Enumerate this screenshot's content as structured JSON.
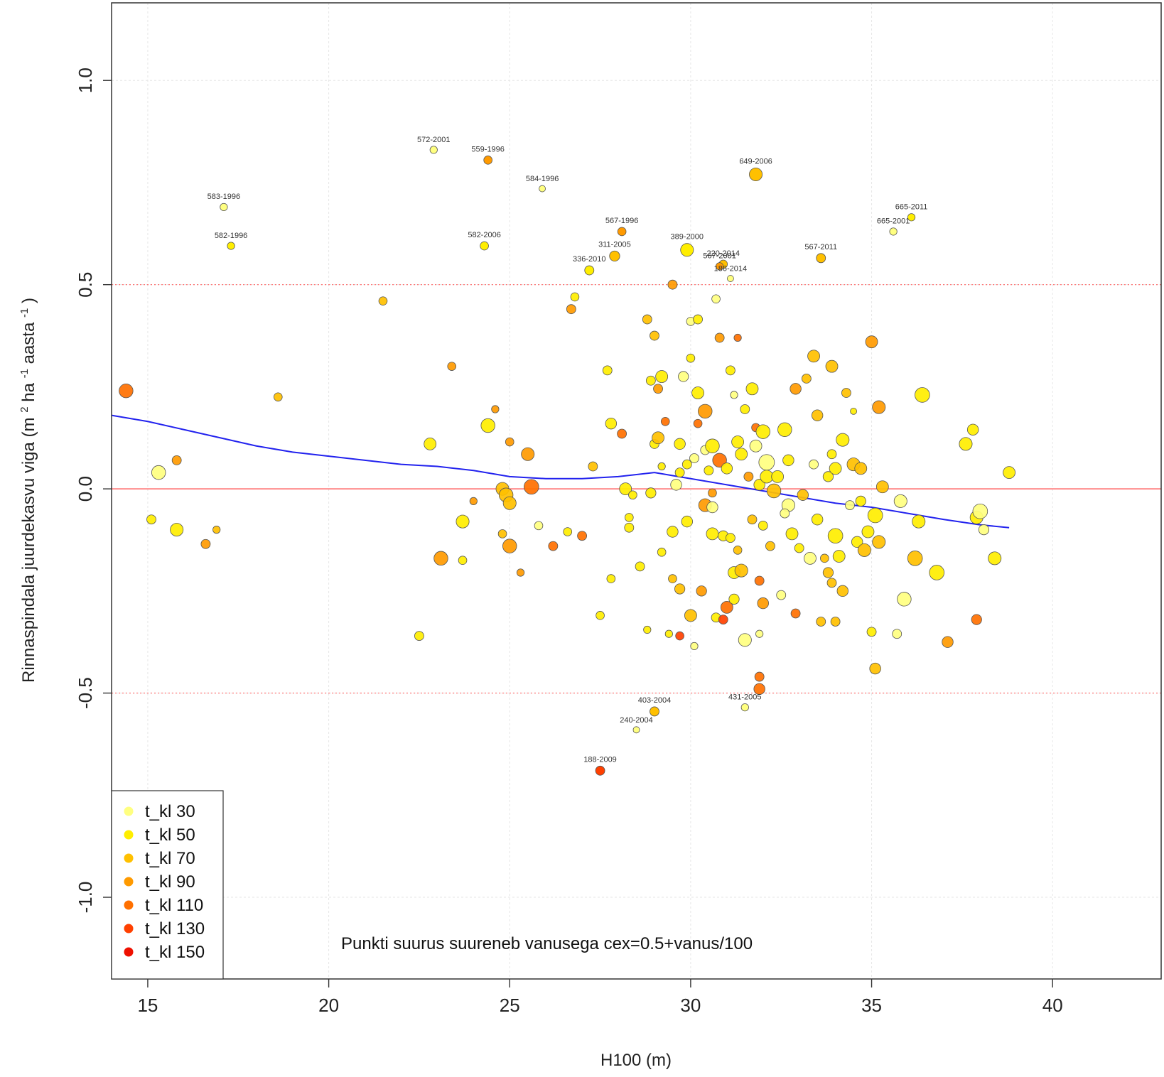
{
  "chart_data": {
    "type": "scatter",
    "xlabel": "H100 (m)",
    "ylabel_main": "Rinnaspindala juurdekasvu viga",
    "ylabel_unit": {
      "open": "(m",
      "sup1": "2",
      "mid1": "ha",
      "sup2": "-1",
      "mid2": "aasta",
      "sup3": "-1",
      "close": ")"
    },
    "xlim": [
      14,
      43
    ],
    "ylim": [
      -1.2,
      1.19
    ],
    "x_ticks": [
      15,
      20,
      25,
      30,
      35,
      40
    ],
    "y_ticks": [
      -1.0,
      -0.5,
      0.0,
      0.5,
      1.0
    ],
    "y_tick_labels": [
      "-1.0",
      "-0.5",
      "0.0",
      "0.5",
      "1.0"
    ],
    "hlines": [
      {
        "y": 0.0,
        "color": "#ff6666",
        "style": "solid"
      },
      {
        "y": 0.5,
        "color": "#ff6666",
        "style": "dotted"
      },
      {
        "y": -0.5,
        "color": "#ff6666",
        "style": "dotted"
      }
    ],
    "annotation": "Punkti suurus suureneb vanusega cex=0.5+vanus/100",
    "legend": {
      "position": "bottom-left",
      "entries": [
        {
          "label": "t_kl 30",
          "color": "#ffff80"
        },
        {
          "label": "t_kl 50",
          "color": "#ffee00"
        },
        {
          "label": "t_kl 70",
          "color": "#ffc000"
        },
        {
          "label": "t_kl 90",
          "color": "#ff9a00"
        },
        {
          "label": "t_kl 110",
          "color": "#ff7000"
        },
        {
          "label": "t_kl 130",
          "color": "#ff4000"
        },
        {
          "label": "t_kl 150",
          "color": "#ee1000"
        }
      ]
    },
    "smooth_line": {
      "color": "#2222ee",
      "x": [
        14,
        15,
        16,
        17,
        18,
        19,
        20,
        21,
        22,
        23,
        24,
        25,
        26,
        27,
        28,
        29,
        30,
        31,
        32,
        33,
        34,
        35,
        36,
        37,
        38,
        38.8
      ],
      "y": [
        0.18,
        0.165,
        0.145,
        0.125,
        0.105,
        0.09,
        0.08,
        0.07,
        0.06,
        0.055,
        0.045,
        0.03,
        0.025,
        0.025,
        0.03,
        0.04,
        0.025,
        0.01,
        -0.005,
        -0.02,
        -0.035,
        -0.045,
        -0.06,
        -0.075,
        -0.088,
        -0.095
      ]
    },
    "labeled_points": [
      {
        "label": "572-2001",
        "x": 22.9,
        "y": 0.83,
        "cls": 30,
        "size": 0.8
      },
      {
        "label": "559-1996",
        "x": 24.4,
        "y": 0.805,
        "cls": 90,
        "size": 0.9
      },
      {
        "label": "583-1996",
        "x": 17.1,
        "y": 0.69,
        "cls": 30,
        "size": 0.8
      },
      {
        "label": "584-1996",
        "x": 25.9,
        "y": 0.735,
        "cls": 30,
        "size": 0.7
      },
      {
        "label": "649-2006",
        "x": 31.8,
        "y": 0.77,
        "cls": 70,
        "size": 1.4
      },
      {
        "label": "665-2011",
        "x": 36.1,
        "y": 0.665,
        "cls": 50,
        "size": 0.8
      },
      {
        "label": "665-2001",
        "x": 35.6,
        "y": 0.63,
        "cls": 30,
        "size": 0.8
      },
      {
        "label": "582-1996",
        "x": 17.3,
        "y": 0.595,
        "cls": 50,
        "size": 0.8
      },
      {
        "label": "582-2006",
        "x": 24.3,
        "y": 0.595,
        "cls": 50,
        "size": 0.9
      },
      {
        "label": "567-1996",
        "x": 28.1,
        "y": 0.63,
        "cls": 90,
        "size": 0.9
      },
      {
        "label": "311-2005",
        "x": 27.9,
        "y": 0.57,
        "cls": 70,
        "size": 1.1
      },
      {
        "label": "336-2010",
        "x": 27.2,
        "y": 0.535,
        "cls": 50,
        "size": 1.0
      },
      {
        "label": "389-2000",
        "x": 29.9,
        "y": 0.585,
        "cls": 50,
        "size": 1.4
      },
      {
        "label": "220-2014",
        "x": 30.9,
        "y": 0.55,
        "cls": 70,
        "size": 0.9
      },
      {
        "label": "567-2001",
        "x": 30.8,
        "y": 0.545,
        "cls": 90,
        "size": 0.8
      },
      {
        "label": "186-2014",
        "x": 31.1,
        "y": 0.515,
        "cls": 30,
        "size": 0.7
      },
      {
        "label": "567-2011",
        "x": 33.6,
        "y": 0.565,
        "cls": 70,
        "size": 1.0
      },
      {
        "label": "403-2004",
        "x": 29.0,
        "y": -0.545,
        "cls": 70,
        "size": 1.0
      },
      {
        "label": "240-2004",
        "x": 28.5,
        "y": -0.59,
        "cls": 30,
        "size": 0.7
      },
      {
        "label": "431-2005",
        "x": 31.5,
        "y": -0.535,
        "cls": 30,
        "size": 0.8
      },
      {
        "label": "188-2009",
        "x": 27.5,
        "y": -0.69,
        "cls": 130,
        "size": 1.0
      }
    ],
    "points": [
      [
        14.4,
        0.24,
        110,
        1.5
      ],
      [
        15.1,
        -0.075,
        50,
        1.0
      ],
      [
        15.3,
        0.04,
        30,
        1.5
      ],
      [
        15.8,
        -0.1,
        50,
        1.4
      ],
      [
        15.8,
        0.07,
        90,
        1.0
      ],
      [
        16.6,
        -0.135,
        90,
        1.0
      ],
      [
        16.9,
        -0.1,
        70,
        0.8
      ],
      [
        18.6,
        0.225,
        70,
        0.9
      ],
      [
        21.5,
        0.46,
        70,
        0.9
      ],
      [
        22.5,
        -0.36,
        50,
        1.0
      ],
      [
        22.8,
        0.11,
        50,
        1.3
      ],
      [
        23.1,
        -0.17,
        90,
        1.5
      ],
      [
        23.4,
        0.3,
        90,
        0.9
      ],
      [
        23.7,
        -0.08,
        50,
        1.4
      ],
      [
        23.7,
        -0.175,
        50,
        0.9
      ],
      [
        24.0,
        -0.03,
        90,
        0.8
      ],
      [
        24.4,
        0.155,
        50,
        1.5
      ],
      [
        24.6,
        0.195,
        90,
        0.8
      ],
      [
        24.8,
        0.0,
        70,
        1.4
      ],
      [
        24.8,
        -0.11,
        70,
        0.9
      ],
      [
        25.0,
        0.115,
        90,
        0.9
      ],
      [
        24.9,
        -0.015,
        70,
        1.5
      ],
      [
        25.0,
        -0.035,
        70,
        1.4
      ],
      [
        25.0,
        -0.14,
        90,
        1.5
      ],
      [
        25.3,
        -0.205,
        90,
        0.8
      ],
      [
        25.5,
        0.085,
        90,
        1.4
      ],
      [
        25.6,
        0.005,
        110,
        1.6
      ],
      [
        25.8,
        -0.09,
        30,
        0.9
      ],
      [
        26.2,
        -0.14,
        110,
        1.0
      ],
      [
        26.6,
        -0.105,
        50,
        0.9
      ],
      [
        26.7,
        0.44,
        90,
        1.0
      ],
      [
        26.8,
        0.47,
        50,
        0.9
      ],
      [
        27.0,
        -0.115,
        110,
        1.0
      ],
      [
        27.3,
        0.055,
        70,
        1.0
      ],
      [
        27.5,
        -0.31,
        50,
        0.9
      ],
      [
        27.7,
        0.29,
        50,
        1.0
      ],
      [
        27.8,
        0.16,
        50,
        1.2
      ],
      [
        27.8,
        -0.22,
        50,
        0.9
      ],
      [
        28.1,
        0.135,
        110,
        1.0
      ],
      [
        28.2,
        0.0,
        50,
        1.3
      ],
      [
        28.3,
        -0.095,
        50,
        1.0
      ],
      [
        28.3,
        -0.07,
        50,
        0.9
      ],
      [
        28.4,
        -0.015,
        50,
        0.9
      ],
      [
        28.6,
        -0.19,
        50,
        1.0
      ],
      [
        28.8,
        -0.345,
        50,
        0.8
      ],
      [
        28.8,
        0.415,
        70,
        1.0
      ],
      [
        28.9,
        0.265,
        50,
        1.0
      ],
      [
        28.9,
        -0.01,
        50,
        1.1
      ],
      [
        29.0,
        0.11,
        50,
        1.0
      ],
      [
        29.0,
        0.375,
        70,
        1.0
      ],
      [
        29.1,
        0.125,
        70,
        1.3
      ],
      [
        29.1,
        0.245,
        90,
        1.0
      ],
      [
        29.2,
        -0.155,
        50,
        0.9
      ],
      [
        29.2,
        0.275,
        50,
        1.3
      ],
      [
        29.3,
        0.165,
        110,
        0.9
      ],
      [
        29.4,
        -0.355,
        50,
        0.8
      ],
      [
        29.5,
        -0.22,
        70,
        0.9
      ],
      [
        29.5,
        -0.105,
        50,
        1.2
      ],
      [
        29.5,
        0.5,
        90,
        1.0
      ],
      [
        29.6,
        0.01,
        30,
        1.2
      ],
      [
        29.7,
        0.04,
        50,
        1.0
      ],
      [
        29.7,
        -0.245,
        70,
        1.1
      ],
      [
        29.7,
        -0.36,
        130,
        0.9
      ],
      [
        29.7,
        0.11,
        50,
        1.2
      ],
      [
        29.8,
        0.275,
        30,
        1.1
      ],
      [
        29.9,
        -0.08,
        50,
        1.2
      ],
      [
        29.9,
        0.06,
        50,
        1.0
      ],
      [
        30.0,
        -0.31,
        70,
        1.3
      ],
      [
        30.0,
        0.41,
        30,
        0.9
      ],
      [
        30.0,
        0.32,
        50,
        0.9
      ],
      [
        30.1,
        -0.385,
        30,
        0.8
      ],
      [
        30.1,
        0.075,
        30,
        1.0
      ],
      [
        30.2,
        0.16,
        110,
        0.9
      ],
      [
        30.2,
        0.415,
        50,
        1.0
      ],
      [
        30.2,
        0.235,
        50,
        1.3
      ],
      [
        30.3,
        -0.25,
        90,
        1.1
      ],
      [
        30.4,
        0.19,
        90,
        1.5
      ],
      [
        30.4,
        -0.04,
        90,
        1.4
      ],
      [
        30.4,
        0.095,
        30,
        1.0
      ],
      [
        30.5,
        0.045,
        50,
        1.0
      ],
      [
        30.6,
        0.105,
        50,
        1.5
      ],
      [
        30.6,
        -0.11,
        50,
        1.3
      ],
      [
        30.6,
        -0.01,
        90,
        0.9
      ],
      [
        30.7,
        0.465,
        30,
        0.9
      ],
      [
        30.7,
        -0.315,
        50,
        1.0
      ],
      [
        30.8,
        0.07,
        110,
        1.5
      ],
      [
        30.8,
        0.37,
        90,
        1.0
      ],
      [
        30.9,
        -0.115,
        50,
        1.1
      ],
      [
        30.9,
        -0.32,
        130,
        1.0
      ],
      [
        31.0,
        -0.29,
        110,
        1.3
      ],
      [
        31.0,
        0.05,
        50,
        1.2
      ],
      [
        31.1,
        -0.12,
        50,
        1.0
      ],
      [
        31.1,
        0.29,
        50,
        1.0
      ],
      [
        31.2,
        0.23,
        30,
        0.8
      ],
      [
        31.2,
        -0.27,
        50,
        1.1
      ],
      [
        31.2,
        -0.205,
        50,
        1.3
      ],
      [
        31.3,
        0.115,
        50,
        1.3
      ],
      [
        31.3,
        -0.15,
        70,
        0.9
      ],
      [
        31.3,
        0.37,
        110,
        0.8
      ],
      [
        31.4,
        0.085,
        50,
        1.3
      ],
      [
        31.4,
        -0.2,
        70,
        1.4
      ],
      [
        31.5,
        -0.37,
        30,
        1.4
      ],
      [
        31.5,
        0.195,
        50,
        1.0
      ],
      [
        31.6,
        0.03,
        90,
        1.0
      ],
      [
        31.7,
        0.245,
        50,
        1.3
      ],
      [
        31.7,
        -0.075,
        70,
        1.0
      ],
      [
        31.8,
        0.15,
        110,
        0.9
      ],
      [
        31.9,
        0.01,
        50,
        1.2
      ],
      [
        31.9,
        -0.225,
        110,
        1.0
      ],
      [
        31.9,
        -0.355,
        30,
        0.8
      ],
      [
        31.9,
        -0.46,
        110,
        1.0
      ],
      [
        31.9,
        -0.49,
        110,
        1.2
      ],
      [
        32.0,
        0.14,
        50,
        1.5
      ],
      [
        32.0,
        -0.09,
        50,
        1.0
      ],
      [
        32.0,
        -0.28,
        90,
        1.2
      ],
      [
        32.1,
        0.03,
        50,
        1.4
      ],
      [
        32.1,
        0.065,
        30,
        1.7
      ],
      [
        32.2,
        -0.14,
        70,
        1.0
      ],
      [
        32.3,
        -0.005,
        70,
        1.5
      ],
      [
        32.4,
        0.03,
        50,
        1.3
      ],
      [
        32.5,
        -0.26,
        30,
        1.0
      ],
      [
        32.6,
        0.145,
        50,
        1.5
      ],
      [
        32.7,
        0.07,
        50,
        1.2
      ],
      [
        32.7,
        -0.04,
        30,
        1.4
      ],
      [
        32.8,
        -0.11,
        50,
        1.3
      ],
      [
        32.9,
        0.245,
        90,
        1.2
      ],
      [
        32.9,
        -0.305,
        110,
        1.0
      ],
      [
        33.0,
        -0.145,
        50,
        1.0
      ],
      [
        33.1,
        -0.015,
        70,
        1.2
      ],
      [
        33.2,
        0.27,
        70,
        1.0
      ],
      [
        33.3,
        -0.17,
        30,
        1.3
      ],
      [
        33.4,
        0.325,
        70,
        1.3
      ],
      [
        33.5,
        -0.075,
        50,
        1.2
      ],
      [
        33.5,
        0.18,
        70,
        1.2
      ],
      [
        33.6,
        -0.325,
        70,
        1.0
      ],
      [
        33.7,
        -0.17,
        70,
        0.9
      ],
      [
        33.8,
        0.03,
        50,
        1.1
      ],
      [
        33.8,
        -0.205,
        70,
        1.1
      ],
      [
        33.9,
        0.085,
        50,
        1.0
      ],
      [
        33.9,
        0.3,
        70,
        1.3
      ],
      [
        34.0,
        -0.115,
        50,
        1.6
      ],
      [
        34.0,
        0.05,
        50,
        1.3
      ],
      [
        34.0,
        -0.325,
        70,
        1.0
      ],
      [
        34.1,
        -0.165,
        50,
        1.3
      ],
      [
        34.2,
        -0.25,
        70,
        1.2
      ],
      [
        34.2,
        0.12,
        50,
        1.4
      ],
      [
        34.3,
        0.235,
        70,
        1.0
      ],
      [
        34.4,
        -0.04,
        30,
        1.0
      ],
      [
        34.5,
        0.06,
        70,
        1.4
      ],
      [
        34.5,
        0.19,
        50,
        0.7
      ],
      [
        34.6,
        -0.13,
        50,
        1.2
      ],
      [
        34.7,
        0.05,
        70,
        1.3
      ],
      [
        34.8,
        -0.15,
        70,
        1.4
      ],
      [
        34.9,
        -0.105,
        50,
        1.3
      ],
      [
        35.0,
        0.36,
        90,
        1.3
      ],
      [
        35.0,
        -0.35,
        50,
        1.0
      ],
      [
        35.1,
        -0.065,
        50,
        1.6
      ],
      [
        35.2,
        0.2,
        90,
        1.4
      ],
      [
        35.2,
        -0.13,
        70,
        1.4
      ],
      [
        35.3,
        0.005,
        70,
        1.3
      ],
      [
        35.7,
        -0.355,
        30,
        1.0
      ],
      [
        35.8,
        -0.03,
        30,
        1.4
      ],
      [
        35.9,
        -0.27,
        30,
        1.5
      ],
      [
        36.2,
        -0.17,
        70,
        1.6
      ],
      [
        36.3,
        -0.08,
        50,
        1.4
      ],
      [
        36.4,
        0.23,
        50,
        1.6
      ],
      [
        36.8,
        -0.205,
        50,
        1.6
      ],
      [
        37.1,
        -0.375,
        90,
        1.2
      ],
      [
        37.6,
        0.11,
        50,
        1.4
      ],
      [
        37.8,
        0.145,
        50,
        1.2
      ],
      [
        37.9,
        -0.07,
        50,
        1.4
      ],
      [
        37.9,
        -0.32,
        110,
        1.1
      ],
      [
        38.0,
        -0.055,
        30,
        1.6
      ],
      [
        38.1,
        -0.1,
        30,
        1.1
      ],
      [
        38.4,
        -0.17,
        50,
        1.4
      ],
      [
        38.8,
        0.04,
        50,
        1.3
      ],
      [
        35.1,
        -0.44,
        70,
        1.2
      ],
      [
        30.6,
        -0.045,
        30,
        1.2
      ],
      [
        32.6,
        -0.06,
        30,
        1.0
      ],
      [
        33.4,
        0.06,
        30,
        1.0
      ],
      [
        31.8,
        0.105,
        30,
        1.3
      ],
      [
        29.2,
        0.055,
        50,
        0.8
      ],
      [
        34.7,
        -0.03,
        50,
        1.1
      ],
      [
        33.9,
        -0.23,
        70,
        1.0
      ]
    ]
  }
}
